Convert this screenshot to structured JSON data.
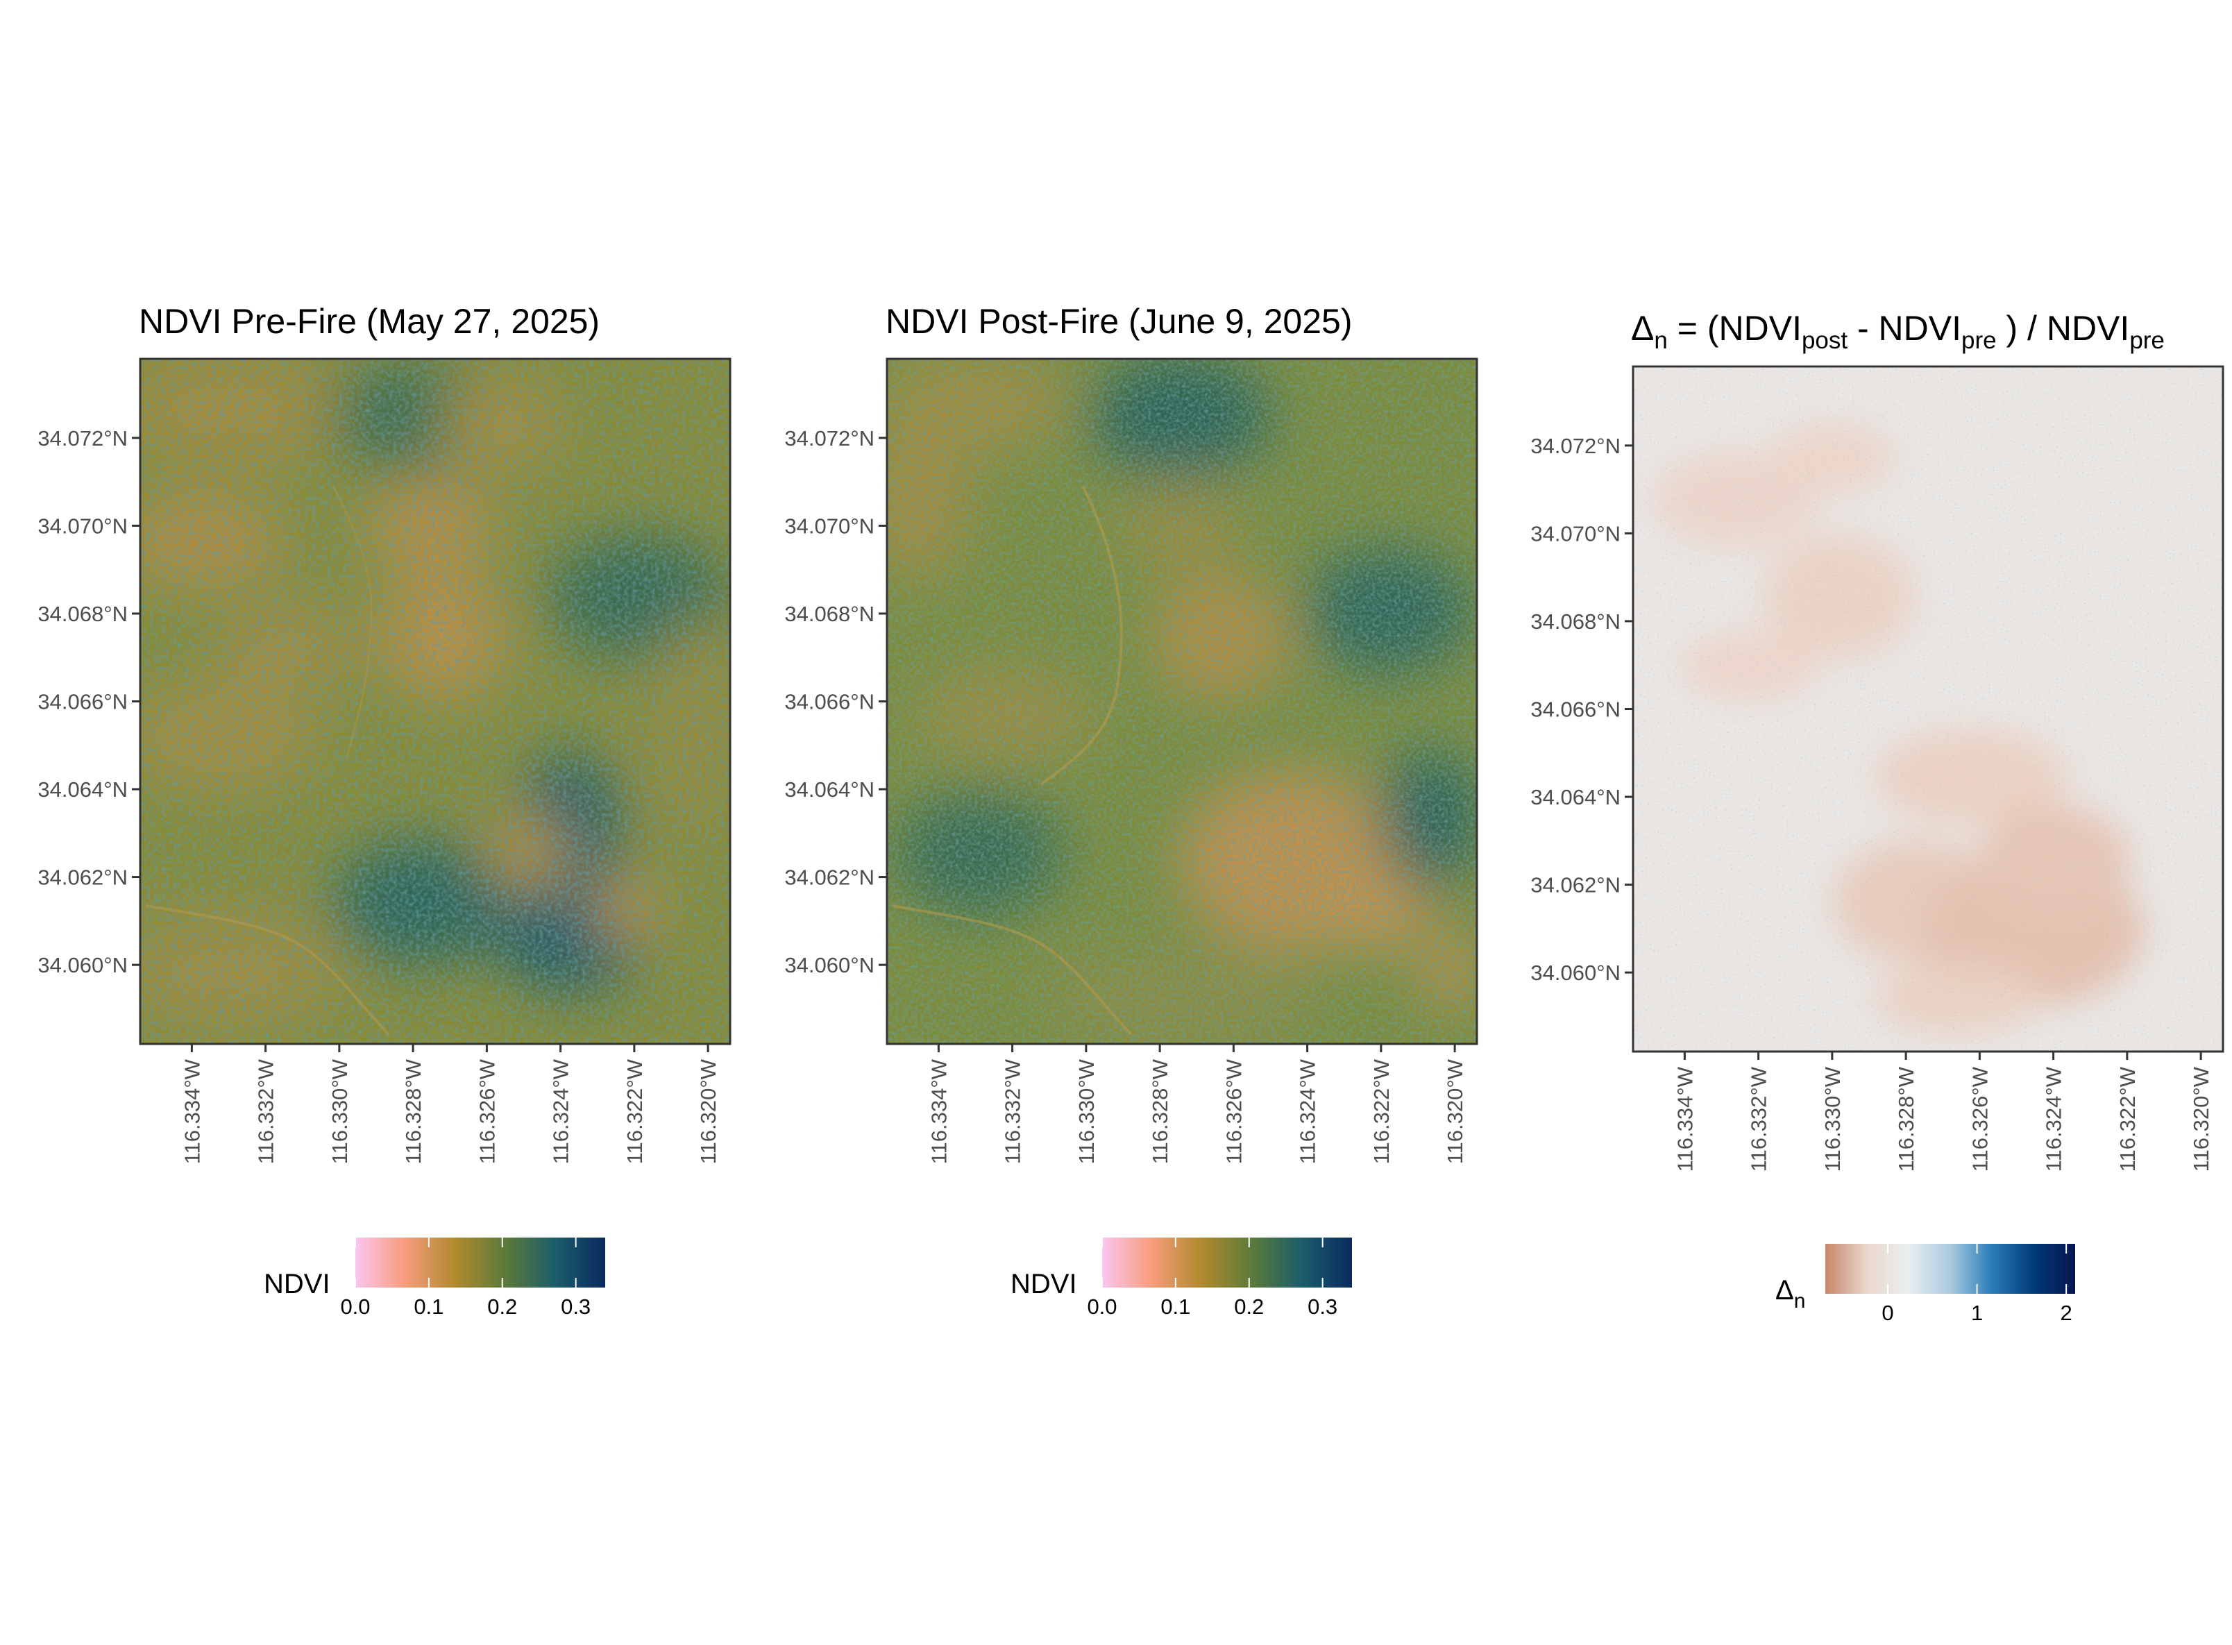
{
  "chart_data": [
    {
      "type": "heatmap",
      "title": "NDVI Pre-Fire (May 27, 2025)",
      "x_tick_labels": [
        "116.334°W",
        "116.332°W",
        "116.330°W",
        "116.328°W",
        "116.326°W",
        "116.324°W",
        "116.322°W",
        "116.320°W"
      ],
      "y_tick_labels": [
        "34.072°N",
        "34.070°N",
        "34.068°N",
        "34.066°N",
        "34.064°N",
        "34.062°N",
        "34.060°N"
      ],
      "x_ticks": [
        -116.334,
        -116.332,
        -116.33,
        -116.328,
        -116.326,
        -116.324,
        -116.322,
        -116.32
      ],
      "y_ticks": [
        34.072,
        34.07,
        34.068,
        34.066,
        34.064,
        34.062,
        34.06
      ],
      "xlim": [
        -116.3354,
        -116.3194
      ],
      "ylim": [
        34.0582,
        34.0738
      ],
      "legend": {
        "title": "NDVI",
        "labels": [
          "0.0",
          "0.1",
          "0.2",
          "0.3"
        ],
        "ticks": [
          0.0,
          0.1,
          0.2,
          0.3
        ],
        "range": [
          0.0,
          0.34
        ],
        "colors": [
          "#fbc6f0",
          "#f79c7c",
          "#b08a2e",
          "#5c7a3a",
          "#1b5d6a",
          "#0a2a60"
        ],
        "position": "bottom"
      }
    },
    {
      "type": "heatmap",
      "title": "NDVI Post-Fire (June 9, 2025)",
      "x_tick_labels": [
        "116.334°W",
        "116.332°W",
        "116.330°W",
        "116.328°W",
        "116.326°W",
        "116.324°W",
        "116.322°W",
        "116.320°W"
      ],
      "y_tick_labels": [
        "34.072°N",
        "34.070°N",
        "34.068°N",
        "34.066°N",
        "34.064°N",
        "34.062°N",
        "34.060°N"
      ],
      "x_ticks": [
        -116.334,
        -116.332,
        -116.33,
        -116.328,
        -116.326,
        -116.324,
        -116.322,
        -116.32
      ],
      "y_ticks": [
        34.072,
        34.07,
        34.068,
        34.066,
        34.064,
        34.062,
        34.06
      ],
      "xlim": [
        -116.3354,
        -116.3194
      ],
      "ylim": [
        34.0582,
        34.0738
      ],
      "legend": {
        "title": "NDVI",
        "labels": [
          "0.0",
          "0.1",
          "0.2",
          "0.3"
        ],
        "ticks": [
          0.0,
          0.1,
          0.2,
          0.3
        ],
        "range": [
          0.0,
          0.34
        ],
        "colors": [
          "#fbc6f0",
          "#f79c7c",
          "#b08a2e",
          "#5c7a3a",
          "#1b5d6a",
          "#0a2a60"
        ],
        "position": "bottom"
      }
    },
    {
      "type": "heatmap",
      "title_parts": {
        "delta": "Δ",
        "delta_sub": "n",
        "eq": " = (NDVI",
        "post": "post",
        "minus": " - NDVI",
        "pre1": "pre",
        "close": " ) / NDVI",
        "pre2": "pre"
      },
      "x_tick_labels": [
        "116.334°W",
        "116.332°W",
        "116.330°W",
        "116.328°W",
        "116.326°W",
        "116.324°W",
        "116.322°W",
        "116.320°W"
      ],
      "y_tick_labels": [
        "34.072°N",
        "34.070°N",
        "34.068°N",
        "34.066°N",
        "34.064°N",
        "34.062°N",
        "34.060°N"
      ],
      "x_ticks": [
        -116.334,
        -116.332,
        -116.33,
        -116.328,
        -116.326,
        -116.324,
        -116.322,
        -116.32
      ],
      "y_ticks": [
        34.072,
        34.07,
        34.068,
        34.066,
        34.064,
        34.062,
        34.06
      ],
      "xlim": [
        -116.3354,
        -116.3194
      ],
      "ylim": [
        34.0582,
        34.0738
      ],
      "legend": {
        "title": "Δ",
        "title_sub": "n",
        "labels": [
          "0",
          "1",
          "2"
        ],
        "ticks": [
          0,
          1,
          2
        ],
        "range": [
          -0.7,
          2.1
        ],
        "colors": [
          "#c8876a",
          "#ead7cc",
          "#e9eef0",
          "#a9cbe0",
          "#2a7db8",
          "#003a78",
          "#06164f"
        ],
        "position": "bottom"
      }
    }
  ]
}
